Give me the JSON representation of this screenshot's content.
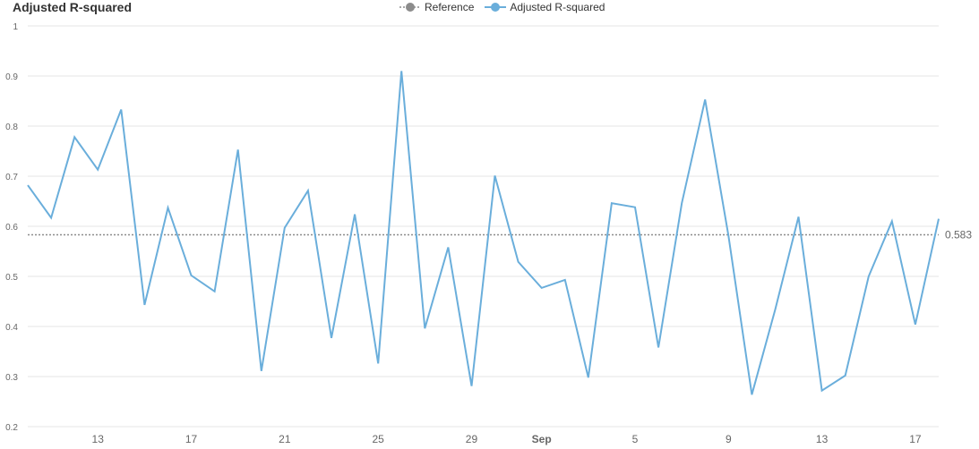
{
  "title": "Adjusted R-squared",
  "legend": {
    "reference_label": "Reference",
    "series_label": "Adjusted R-squared"
  },
  "colors": {
    "series": "#6aaedb",
    "reference": "#8c8c8c",
    "grid": "#e6e6e6"
  },
  "chart_data": {
    "type": "line",
    "title": "Adjusted R-squared",
    "xlabel": "",
    "ylabel": "",
    "ylim": [
      0.2,
      1.0
    ],
    "yticks": [
      "0.2",
      "0.3",
      "0.4",
      "0.5",
      "0.6",
      "0.7",
      "0.8",
      "0.9",
      "1"
    ],
    "xticks": [
      {
        "label": "13",
        "date": "2024-08-13",
        "bold": false
      },
      {
        "label": "17",
        "date": "2024-08-17",
        "bold": false
      },
      {
        "label": "21",
        "date": "2024-08-21",
        "bold": false
      },
      {
        "label": "25",
        "date": "2024-08-25",
        "bold": false
      },
      {
        "label": "29",
        "date": "2024-08-29",
        "bold": false
      },
      {
        "label": "Sep",
        "date": "2024-09-01",
        "bold": true
      },
      {
        "label": "5",
        "date": "2024-09-05",
        "bold": false
      },
      {
        "label": "9",
        "date": "2024-09-09",
        "bold": false
      },
      {
        "label": "13",
        "date": "2024-09-13",
        "bold": false
      },
      {
        "label": "17",
        "date": "2024-09-17",
        "bold": false
      }
    ],
    "reference": {
      "name": "Reference",
      "value": 0.583,
      "label": "0.583"
    },
    "series": [
      {
        "name": "Adjusted R-squared",
        "x": [
          "2024-08-10",
          "2024-08-11",
          "2024-08-12",
          "2024-08-13",
          "2024-08-14",
          "2024-08-15",
          "2024-08-16",
          "2024-08-17",
          "2024-08-18",
          "2024-08-19",
          "2024-08-20",
          "2024-08-21",
          "2024-08-22",
          "2024-08-23",
          "2024-08-24",
          "2024-08-25",
          "2024-08-26",
          "2024-08-27",
          "2024-08-28",
          "2024-08-29",
          "2024-08-30",
          "2024-08-31",
          "2024-09-01",
          "2024-09-02",
          "2024-09-03",
          "2024-09-04",
          "2024-09-05",
          "2024-09-06",
          "2024-09-07",
          "2024-09-08",
          "2024-09-09",
          "2024-09-10",
          "2024-09-11",
          "2024-09-12",
          "2024-09-13",
          "2024-09-14",
          "2024-09-15",
          "2024-09-16",
          "2024-09-17",
          "2024-09-18"
        ],
        "values": [
          0.682,
          0.617,
          0.778,
          0.713,
          0.833,
          0.443,
          0.637,
          0.502,
          0.47,
          0.753,
          0.311,
          0.597,
          0.671,
          0.377,
          0.624,
          0.326,
          0.91,
          0.396,
          0.558,
          0.281,
          0.701,
          0.529,
          0.477,
          0.493,
          0.298,
          0.646,
          0.638,
          0.358,
          0.646,
          0.853,
          0.581,
          0.264,
          0.434,
          0.619,
          0.272,
          0.302,
          0.5,
          0.61,
          0.404,
          0.615
        ]
      }
    ]
  }
}
